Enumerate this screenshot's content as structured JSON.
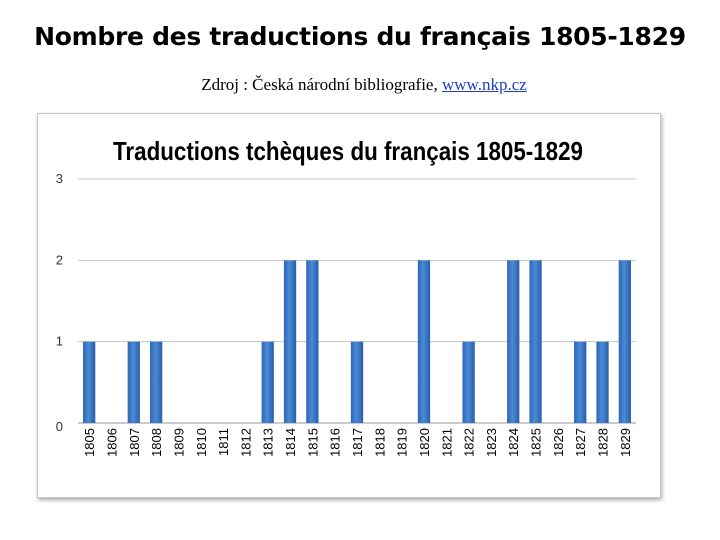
{
  "slide": {
    "title": "Nombre des traductions du français 1805-1829",
    "source_text": "Zdroj : Česká národní bibliografie, ",
    "source_link": "www.nkp.cz"
  },
  "chart_data": {
    "type": "bar",
    "title": "Traductions tchèques du français 1805-1829",
    "xlabel": "",
    "ylabel": "",
    "categories": [
      "1805",
      "1806",
      "1807",
      "1808",
      "1809",
      "1810",
      "1811",
      "1812",
      "1813",
      "1814",
      "1815",
      "1816",
      "1817",
      "1818",
      "1819",
      "1820",
      "1821",
      "1822",
      "1823",
      "1824",
      "1825",
      "1826",
      "1827",
      "1828",
      "1829"
    ],
    "values": [
      1,
      0,
      1,
      1,
      0,
      0,
      0,
      0,
      1,
      2,
      2,
      0,
      1,
      0,
      0,
      2,
      0,
      1,
      0,
      2,
      2,
      0,
      1,
      1,
      2
    ],
    "ylim": [
      0,
      3
    ],
    "yticks": [
      "0",
      "1",
      "2",
      "3"
    ],
    "grid": true,
    "legend": "none",
    "bar_color": "#3b78c8"
  }
}
